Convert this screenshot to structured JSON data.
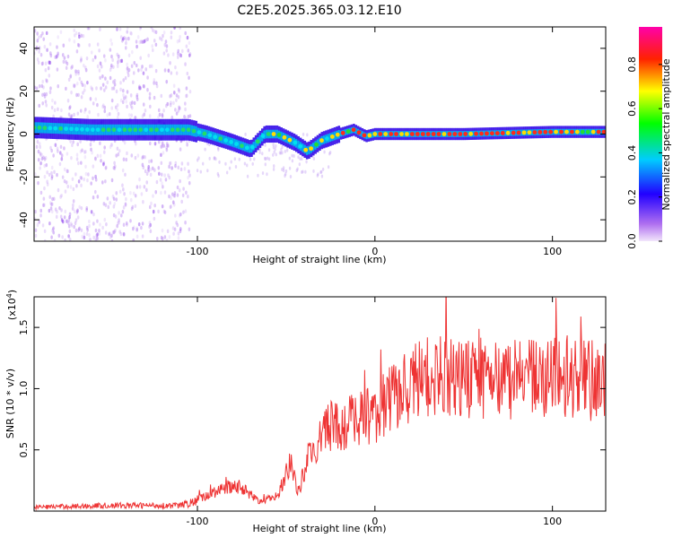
{
  "title": "C2E5.2025.365.03.12.E10",
  "chart_data": [
    {
      "type": "heatmap",
      "xlabel": "Height of straight line (km)",
      "ylabel": "Frequency (Hz)",
      "xlim": [
        -192,
        130
      ],
      "ylim": [
        -50,
        50
      ],
      "x_ticks": [
        -100,
        0,
        100
      ],
      "y_ticks": [
        -40,
        -20,
        0,
        20,
        40
      ],
      "colorbar": {
        "label": "Normalized spectral amplitude",
        "range": [
          0.0,
          0.97
        ],
        "ticks": [
          0.0,
          0.2,
          0.4,
          0.6,
          0.8
        ],
        "colors": [
          "#e6d4f4",
          "#8800ff",
          "#0000ff",
          "#00ffff",
          "#00ff00",
          "#ffff00",
          "#ff0000",
          "#ff00aa"
        ]
      },
      "ridge_frequency": [
        {
          "x": -190,
          "y": 3
        },
        {
          "x": -160,
          "y": 2
        },
        {
          "x": -130,
          "y": 2
        },
        {
          "x": -105,
          "y": 2
        },
        {
          "x": -95,
          "y": 0
        },
        {
          "x": -80,
          "y": -4
        },
        {
          "x": -70,
          "y": -7
        },
        {
          "x": -62,
          "y": 0
        },
        {
          "x": -55,
          "y": 0
        },
        {
          "x": -45,
          "y": -4
        },
        {
          "x": -38,
          "y": -8
        },
        {
          "x": -30,
          "y": -3
        },
        {
          "x": -20,
          "y": 0
        },
        {
          "x": -12,
          "y": 2
        },
        {
          "x": -5,
          "y": -1
        },
        {
          "x": 0,
          "y": 0
        },
        {
          "x": 50,
          "y": 0
        },
        {
          "x": 100,
          "y": 1
        },
        {
          "x": 130,
          "y": 1
        }
      ]
    },
    {
      "type": "line",
      "xlabel": "Height of straight line (km)",
      "ylabel": "SNR (10 * v/v)",
      "y_scale_label": "(x10",
      "y_scale_exp": "4",
      "y_scale_close": ")",
      "xlim": [
        -192,
        130
      ],
      "ylim": [
        0,
        17500
      ],
      "x_ticks": [
        -100,
        0,
        100
      ],
      "y_ticks": [
        5000,
        10000,
        15000
      ],
      "y_tick_labels": [
        "0.5",
        "1.0",
        "1.5"
      ],
      "color": "#ee3333",
      "series_envelope": [
        {
          "x": -192,
          "y": 500
        },
        {
          "x": -150,
          "y": 700
        },
        {
          "x": -110,
          "y": 700
        },
        {
          "x": -95,
          "y": 1500
        },
        {
          "x": -85,
          "y": 2500
        },
        {
          "x": -75,
          "y": 2300
        },
        {
          "x": -65,
          "y": 1000
        },
        {
          "x": -55,
          "y": 1500
        },
        {
          "x": -47,
          "y": 5000
        },
        {
          "x": -43,
          "y": 1800
        },
        {
          "x": -38,
          "y": 5500
        },
        {
          "x": -32,
          "y": 6500
        },
        {
          "x": -27,
          "y": 9000
        },
        {
          "x": -20,
          "y": 8500
        },
        {
          "x": -10,
          "y": 9500
        },
        {
          "x": 0,
          "y": 10000
        },
        {
          "x": 10,
          "y": 11500
        },
        {
          "x": 20,
          "y": 13000
        },
        {
          "x": 30,
          "y": 14000
        },
        {
          "x": 50,
          "y": 13500
        },
        {
          "x": 70,
          "y": 13500
        },
        {
          "x": 100,
          "y": 13500
        },
        {
          "x": 130,
          "y": 13200
        }
      ]
    }
  ]
}
